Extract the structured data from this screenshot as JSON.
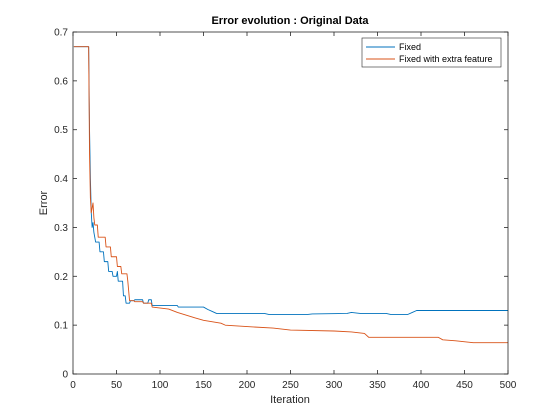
{
  "chart_data": {
    "type": "line",
    "title": "Error evolution : Original Data",
    "xlabel": "Iteration",
    "ylabel": "Error",
    "xlim": [
      0,
      500
    ],
    "ylim": [
      0,
      0.7
    ],
    "xticks": [
      0,
      50,
      100,
      150,
      200,
      250,
      300,
      350,
      400,
      450,
      500
    ],
    "yticks": [
      0,
      0.1,
      0.2,
      0.3,
      0.4,
      0.5,
      0.6,
      0.7
    ],
    "grid": false,
    "legend_position": "top-right",
    "series": [
      {
        "name": "Fixed",
        "color": "#0072BD",
        "points": [
          [
            1,
            0.67
          ],
          [
            18,
            0.67
          ],
          [
            19,
            0.5
          ],
          [
            20,
            0.4
          ],
          [
            21,
            0.33
          ],
          [
            22,
            0.3
          ],
          [
            23,
            0.31
          ],
          [
            24,
            0.29
          ],
          [
            25,
            0.28
          ],
          [
            26,
            0.27
          ],
          [
            30,
            0.27
          ],
          [
            31,
            0.25
          ],
          [
            35,
            0.25
          ],
          [
            36,
            0.23
          ],
          [
            40,
            0.23
          ],
          [
            41,
            0.21
          ],
          [
            45,
            0.21
          ],
          [
            46,
            0.2
          ],
          [
            50,
            0.2
          ],
          [
            51,
            0.21
          ],
          [
            52,
            0.19
          ],
          [
            57,
            0.19
          ],
          [
            58,
            0.16
          ],
          [
            60,
            0.16
          ],
          [
            61,
            0.145
          ],
          [
            65,
            0.145
          ],
          [
            66,
            0.15
          ],
          [
            70,
            0.15
          ],
          [
            71,
            0.152
          ],
          [
            80,
            0.152
          ],
          [
            81,
            0.145
          ],
          [
            86,
            0.145
          ],
          [
            87,
            0.152
          ],
          [
            90,
            0.152
          ],
          [
            91,
            0.14
          ],
          [
            120,
            0.14
          ],
          [
            121,
            0.137
          ],
          [
            150,
            0.137
          ],
          [
            155,
            0.132
          ],
          [
            160,
            0.128
          ],
          [
            165,
            0.124
          ],
          [
            220,
            0.124
          ],
          [
            225,
            0.122
          ],
          [
            270,
            0.122
          ],
          [
            275,
            0.123
          ],
          [
            315,
            0.124
          ],
          [
            320,
            0.126
          ],
          [
            330,
            0.124
          ],
          [
            360,
            0.124
          ],
          [
            365,
            0.122
          ],
          [
            385,
            0.122
          ],
          [
            390,
            0.126
          ],
          [
            395,
            0.13
          ],
          [
            500,
            0.13
          ]
        ]
      },
      {
        "name": "Fixed with extra feature",
        "color": "#D95319",
        "points": [
          [
            1,
            0.67
          ],
          [
            18,
            0.67
          ],
          [
            19,
            0.45
          ],
          [
            20,
            0.36
          ],
          [
            21,
            0.33
          ],
          [
            22,
            0.34
          ],
          [
            23,
            0.35
          ],
          [
            24,
            0.32
          ],
          [
            25,
            0.305
          ],
          [
            28,
            0.305
          ],
          [
            29,
            0.28
          ],
          [
            37,
            0.28
          ],
          [
            38,
            0.26
          ],
          [
            43,
            0.26
          ],
          [
            44,
            0.24
          ],
          [
            50,
            0.24
          ],
          [
            51,
            0.22
          ],
          [
            55,
            0.22
          ],
          [
            56,
            0.205
          ],
          [
            62,
            0.205
          ],
          [
            63,
            0.19
          ],
          [
            64,
            0.17
          ],
          [
            65,
            0.15
          ],
          [
            70,
            0.15
          ],
          [
            71,
            0.148
          ],
          [
            80,
            0.148
          ],
          [
            81,
            0.145
          ],
          [
            90,
            0.145
          ],
          [
            91,
            0.137
          ],
          [
            110,
            0.133
          ],
          [
            120,
            0.126
          ],
          [
            140,
            0.115
          ],
          [
            150,
            0.11
          ],
          [
            170,
            0.104
          ],
          [
            175,
            0.1
          ],
          [
            200,
            0.097
          ],
          [
            230,
            0.094
          ],
          [
            250,
            0.09
          ],
          [
            300,
            0.088
          ],
          [
            320,
            0.086
          ],
          [
            335,
            0.083
          ],
          [
            340,
            0.075
          ],
          [
            420,
            0.075
          ],
          [
            425,
            0.07
          ],
          [
            440,
            0.068
          ],
          [
            460,
            0.064
          ],
          [
            500,
            0.064
          ]
        ]
      }
    ]
  }
}
